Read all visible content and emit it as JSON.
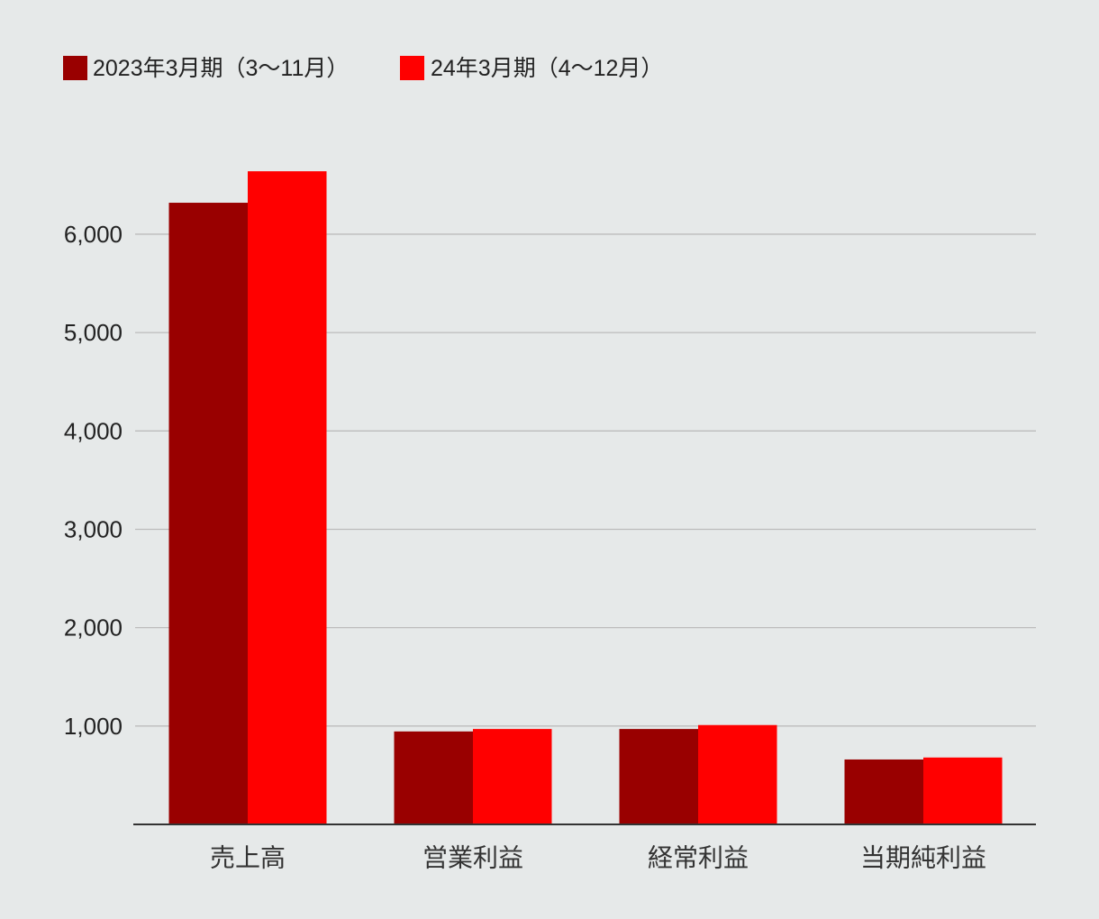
{
  "chart_data": {
    "type": "bar",
    "categories": [
      "売上高",
      "営業利益",
      "経常利益",
      "当期純利益"
    ],
    "series": [
      {
        "name": "2023年3月期（3～11月）",
        "color": "#990000",
        "values": [
          6320,
          945,
          970,
          660
        ]
      },
      {
        "name": "24年3月期（4～12月）",
        "color": "#ff0000",
        "values": [
          6640,
          970,
          1010,
          680
        ]
      }
    ],
    "yticks": [
      {
        "value": 1000,
        "label": "1,000"
      },
      {
        "value": 2000,
        "label": "2,000"
      },
      {
        "value": 3000,
        "label": "3,000"
      },
      {
        "value": 4000,
        "label": "4,000"
      },
      {
        "value": 5000,
        "label": "5,000"
      },
      {
        "value": 6000,
        "label": "6,000"
      }
    ],
    "ylim": [
      0,
      6650
    ],
    "grid": true,
    "legend_position": "top-left"
  }
}
